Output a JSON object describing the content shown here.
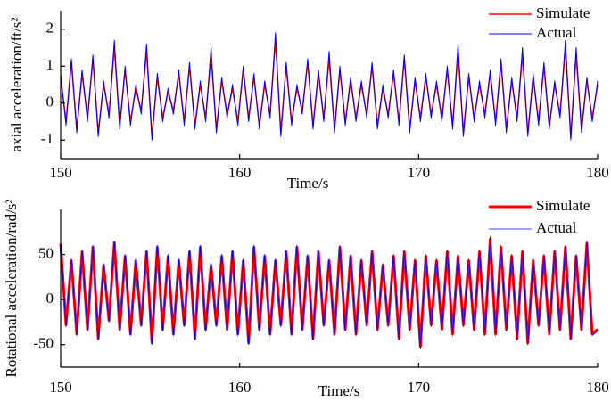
{
  "chart_data": [
    {
      "type": "line",
      "x_label": "Time/s",
      "y_label": "axial acceleration/ft/s²",
      "x": [
        150,
        150.3,
        150.6,
        150.9,
        151.2,
        151.5,
        151.8,
        152.1,
        152.4,
        152.7,
        153,
        153.3,
        153.6,
        153.9,
        154.2,
        154.5,
        154.8,
        155.1,
        155.4,
        155.7,
        156,
        156.3,
        156.6,
        156.9,
        157.2,
        157.5,
        157.8,
        158.1,
        158.4,
        158.7,
        159,
        159.3,
        159.6,
        159.9,
        160.2,
        160.5,
        160.8,
        161.1,
        161.4,
        161.7,
        162,
        162.3,
        162.6,
        162.9,
        163.2,
        163.5,
        163.8,
        164.1,
        164.4,
        164.7,
        165,
        165.3,
        165.6,
        165.9,
        166.2,
        166.5,
        166.8,
        167.1,
        167.4,
        167.7,
        168,
        168.3,
        168.6,
        168.9,
        169.2,
        169.5,
        169.8,
        170.1,
        170.4,
        170.7,
        171,
        171.3,
        171.6,
        171.9,
        172.2,
        172.5,
        172.8,
        173.1,
        173.4,
        173.7,
        174,
        174.3,
        174.6,
        174.9,
        175.2,
        175.5,
        175.8,
        176.1,
        176.4,
        176.7,
        177,
        177.3,
        177.6,
        177.9,
        178.2,
        178.5,
        178.8,
        179.1,
        179.4,
        179.7,
        180
      ],
      "xlim": [
        150,
        180
      ],
      "xticks": [
        150,
        160,
        170,
        180
      ],
      "ylim": [
        -1.5,
        2.5
      ],
      "yticks": [
        -1,
        0,
        1,
        2
      ],
      "legend": "upper right",
      "series": [
        {
          "name": "Simulate",
          "color": "#ff0000",
          "line_width": 1.5,
          "values": [
            0.7,
            -0.5,
            1.1,
            -0.7,
            0.8,
            -0.4,
            1.2,
            -0.8,
            0.5,
            -0.3,
            1.5,
            -0.6,
            0.9,
            -0.5,
            0.4,
            -0.2,
            1.4,
            -0.9,
            0.7,
            -0.4,
            0.3,
            -0.2,
            0.8,
            -0.5,
            1.0,
            -0.6,
            0.5,
            -0.4,
            1.3,
            -0.7,
            0.6,
            -0.3,
            0.4,
            -0.5,
            0.9,
            -0.4,
            0.7,
            -0.6,
            0.5,
            -0.3,
            1.7,
            -0.8,
            1.0,
            -0.5,
            0.4,
            -0.2,
            1.1,
            -0.6,
            0.8,
            -0.4,
            1.2,
            -0.7,
            0.9,
            -0.5,
            0.6,
            -0.4,
            0.5,
            -0.3,
            1.0,
            -0.6,
            0.4,
            -0.3,
            0.8,
            -0.5,
            1.2,
            -0.7,
            0.6,
            -0.4,
            0.7,
            -0.3,
            0.5,
            -0.4,
            0.9,
            -0.6,
            1.4,
            -0.8,
            0.7,
            -0.4,
            0.5,
            -0.3,
            0.8,
            -0.5,
            1.1,
            -0.7,
            0.6,
            -0.4,
            1.3,
            -0.8,
            0.7,
            -0.5,
            1.0,
            -0.6,
            0.5,
            -0.3,
            1.5,
            -0.9,
            1.3,
            -0.7,
            0.6,
            -0.4,
            0.5
          ]
        },
        {
          "name": "Actual",
          "color": "#0000ff",
          "line_width": 1,
          "values": [
            0.8,
            -0.6,
            1.2,
            -0.8,
            0.9,
            -0.5,
            1.3,
            -0.9,
            0.6,
            -0.4,
            1.7,
            -0.7,
            1.0,
            -0.6,
            0.5,
            -0.3,
            1.6,
            -1.0,
            0.8,
            -0.5,
            0.4,
            -0.3,
            0.9,
            -0.6,
            1.1,
            -0.7,
            0.6,
            -0.5,
            1.5,
            -0.8,
            0.7,
            -0.4,
            0.5,
            -0.6,
            1.0,
            -0.5,
            0.8,
            -0.7,
            0.6,
            -0.4,
            1.9,
            -0.9,
            1.1,
            -0.6,
            0.5,
            -0.3,
            1.2,
            -0.7,
            0.9,
            -0.5,
            1.4,
            -0.8,
            1.0,
            -0.6,
            0.7,
            -0.5,
            0.6,
            -0.4,
            1.1,
            -0.7,
            0.5,
            -0.4,
            0.9,
            -0.6,
            1.3,
            -0.8,
            0.7,
            -0.5,
            0.8,
            -0.4,
            0.6,
            -0.5,
            1.0,
            -0.7,
            1.6,
            -0.9,
            0.8,
            -0.5,
            0.6,
            -0.4,
            0.9,
            -0.6,
            1.2,
            -0.8,
            0.7,
            -0.5,
            1.5,
            -0.9,
            0.8,
            -0.6,
            1.1,
            -0.7,
            0.6,
            -0.4,
            1.7,
            -1.0,
            1.5,
            -0.8,
            0.7,
            -0.5,
            0.6
          ]
        }
      ]
    },
    {
      "type": "line",
      "x_label": "Time/s",
      "y_label": "Rotational acceleration/rad/s²",
      "x": [
        150,
        150.3,
        150.6,
        150.9,
        151.2,
        151.5,
        151.8,
        152.1,
        152.4,
        152.7,
        153,
        153.3,
        153.6,
        153.9,
        154.2,
        154.5,
        154.8,
        155.1,
        155.4,
        155.7,
        156,
        156.3,
        156.6,
        156.9,
        157.2,
        157.5,
        157.8,
        158.1,
        158.4,
        158.7,
        159,
        159.3,
        159.6,
        159.9,
        160.2,
        160.5,
        160.8,
        161.1,
        161.4,
        161.7,
        162,
        162.3,
        162.6,
        162.9,
        163.2,
        163.5,
        163.8,
        164.1,
        164.4,
        164.7,
        165,
        165.3,
        165.6,
        165.9,
        166.2,
        166.5,
        166.8,
        167.1,
        167.4,
        167.7,
        168,
        168.3,
        168.6,
        168.9,
        169.2,
        169.5,
        169.8,
        170.1,
        170.4,
        170.7,
        171,
        171.3,
        171.6,
        171.9,
        172.2,
        172.5,
        172.8,
        173.1,
        173.4,
        173.7,
        174,
        174.3,
        174.6,
        174.9,
        175.2,
        175.5,
        175.8,
        176.1,
        176.4,
        176.7,
        177,
        177.3,
        177.6,
        177.9,
        178.2,
        178.5,
        178.8,
        179.1,
        179.4,
        179.7,
        180
      ],
      "xlim": [
        150,
        180
      ],
      "xticks": [
        150,
        160,
        170,
        180
      ],
      "ylim": [
        -75,
        100
      ],
      "yticks": [
        -50,
        0,
        50
      ],
      "legend": "upper right",
      "series": [
        {
          "name": "Simulate",
          "color": "#ff0000",
          "line_width": 3,
          "values": [
            62,
            -28,
            43,
            -38,
            53,
            -33,
            58,
            -43,
            38,
            -23,
            63,
            -33,
            48,
            -38,
            43,
            -28,
            53,
            -48,
            58,
            -33,
            48,
            -38,
            43,
            -28,
            53,
            -43,
            58,
            -33,
            38,
            -28,
            48,
            -33,
            53,
            -38,
            43,
            -48,
            58,
            -33,
            48,
            -38,
            43,
            -28,
            53,
            -38,
            58,
            -33,
            48,
            -43,
            53,
            -28,
            43,
            -38,
            58,
            -33,
            48,
            -38,
            43,
            -28,
            53,
            -33,
            38,
            -28,
            48,
            -43,
            53,
            -33,
            43,
            -52,
            48,
            -28,
            43,
            -33,
            53,
            -38,
            48,
            -28,
            43,
            -33,
            53,
            -38,
            67,
            -38,
            58,
            -33,
            48,
            -43,
            53,
            -48,
            43,
            -28,
            48,
            -38,
            53,
            -33,
            58,
            -43,
            48,
            -33,
            62,
            -38,
            -33
          ]
        },
        {
          "name": "Actual",
          "color": "#0000ff",
          "line_width": 0.8,
          "values": [
            65,
            -30,
            45,
            -40,
            55,
            -35,
            60,
            -45,
            40,
            -25,
            65,
            -35,
            50,
            -40,
            45,
            -30,
            55,
            -50,
            60,
            -35,
            50,
            -40,
            45,
            -30,
            55,
            -45,
            60,
            -35,
            40,
            -30,
            50,
            -35,
            55,
            -40,
            45,
            -50,
            60,
            -35,
            50,
            -40,
            45,
            -30,
            55,
            -40,
            60,
            -35,
            50,
            -45,
            55,
            -30,
            45,
            -40,
            60,
            -35,
            50,
            -40,
            45,
            -30,
            55,
            -35,
            40,
            -30,
            50,
            -45,
            55,
            -35,
            45,
            -55,
            50,
            -30,
            45,
            -35,
            55,
            -40,
            50,
            -30,
            45,
            -35,
            55,
            -40,
            70,
            -40,
            60,
            -35,
            50,
            -45,
            55,
            -50,
            45,
            -30,
            50,
            -40,
            55,
            -35,
            60,
            -45,
            50,
            -35,
            65,
            -40,
            -35
          ]
        }
      ]
    }
  ]
}
